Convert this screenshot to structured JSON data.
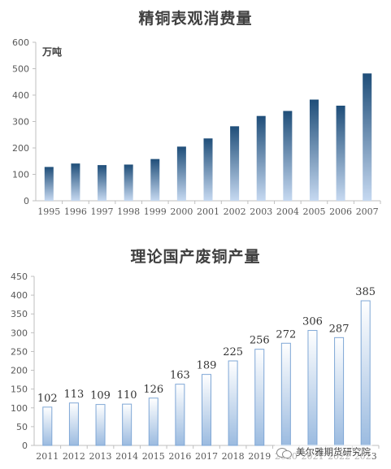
{
  "chart_data": [
    {
      "type": "bar",
      "title": "精铜表观消费量",
      "unit_label": "万吨",
      "categories": [
        "1995",
        "1996",
        "1997",
        "1998",
        "1999",
        "2000",
        "2001",
        "2002",
        "2003",
        "2004",
        "2005",
        "2006",
        "2007"
      ],
      "values": [
        128,
        141,
        135,
        137,
        158,
        205,
        236,
        282,
        321,
        340,
        383,
        360,
        482
      ],
      "ylim": [
        0,
        600
      ],
      "yticks": [
        0,
        100,
        200,
        300,
        400,
        500,
        600
      ],
      "data_labels": false,
      "colors": {
        "top": "#1f4e79",
        "bottom": "#c6d9f1"
      }
    },
    {
      "type": "bar",
      "title": "理论国产废铜产量",
      "categories": [
        "2011",
        "2012",
        "2013",
        "2014",
        "2015",
        "2016",
        "2017",
        "2018",
        "2019",
        "2020",
        "2021",
        "2022",
        "2023"
      ],
      "values": [
        102,
        113,
        109,
        110,
        126,
        163,
        189,
        225,
        256,
        272,
        306,
        287,
        385
      ],
      "ylim": [
        0,
        450
      ],
      "yticks": [
        0,
        50,
        100,
        150,
        200,
        250,
        300,
        350,
        400,
        450
      ],
      "data_labels": true,
      "colors": {
        "top": "#ffffff",
        "bottom": "#9bbbe0",
        "border": "#7fa7d6"
      }
    }
  ],
  "watermark": {
    "text": "美尔雅期货研究院",
    "icon": "wechat-icon"
  }
}
